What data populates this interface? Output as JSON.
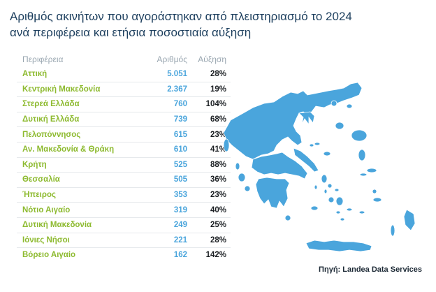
{
  "title_line1": "Αριθμός ακινήτων που αγοράστηκαν από πλειστηριασμό το 2024",
  "title_line2": "ανά περιφέρεια και ετήσια ποσοστιαία αύξηση",
  "source": "Πηγή: Landea Data Services",
  "colors": {
    "region": "#8dba2f",
    "count": "#4aa5dc",
    "growth": "#1b1f23",
    "map": "#4aa5dc",
    "title": "#1d3f5e"
  },
  "chart_data": {
    "type": "table",
    "columns": [
      "Περιφέρεια",
      "Αριθμός",
      "Αύξηση"
    ],
    "rows": [
      {
        "region": "Αττική",
        "count": "5.051",
        "growth": "28%"
      },
      {
        "region": "Κεντρική Μακεδονία",
        "count": "2.367",
        "growth": "19%"
      },
      {
        "region": "Στερεά Ελλάδα",
        "count": "760",
        "growth": "104%"
      },
      {
        "region": "Δυτική Ελλάδα",
        "count": "739",
        "growth": "68%"
      },
      {
        "region": "Πελοπόννησος",
        "count": "615",
        "growth": "23%"
      },
      {
        "region": "Αν. Μακεδονία & Θράκη",
        "count": "610",
        "growth": "41%"
      },
      {
        "region": "Κρήτη",
        "count": "525",
        "growth": "88%"
      },
      {
        "region": "Θεσσαλία",
        "count": "505",
        "growth": "36%"
      },
      {
        "region": "Ήπειρος",
        "count": "353",
        "growth": "23%"
      },
      {
        "region": "Νότιο Αιγαίο",
        "count": "319",
        "growth": "40%"
      },
      {
        "region": "Δυτική Μακεδονία",
        "count": "249",
        "growth": "25%"
      },
      {
        "region": "Ιόνιες Νήσοι",
        "count": "221",
        "growth": "28%"
      },
      {
        "region": "Βόρειο Αιγαίο",
        "count": "162",
        "growth": "142%"
      }
    ]
  }
}
